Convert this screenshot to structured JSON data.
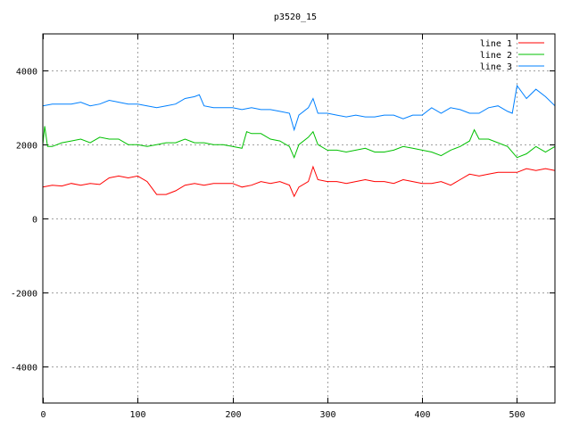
{
  "chart_data": {
    "type": "line",
    "title": "p3520_15",
    "xlabel": "",
    "ylabel": "",
    "xlim": [
      0,
      540
    ],
    "ylim": [
      -5000,
      5000
    ],
    "xticks": [
      0,
      100,
      200,
      300,
      400,
      500
    ],
    "yticks": [
      -4000,
      -2000,
      0,
      2000,
      4000
    ],
    "grid": true,
    "legend_position": "top-right",
    "series": [
      {
        "name": "line 1",
        "color": "#ff0000",
        "x": [
          0,
          10,
          20,
          30,
          40,
          50,
          60,
          70,
          80,
          90,
          100,
          110,
          120,
          130,
          140,
          150,
          160,
          170,
          180,
          190,
          200,
          210,
          220,
          230,
          240,
          250,
          260,
          265,
          270,
          280,
          285,
          290,
          300,
          310,
          320,
          330,
          340,
          350,
          360,
          370,
          380,
          390,
          400,
          410,
          420,
          430,
          440,
          450,
          460,
          470,
          480,
          490,
          500,
          510,
          520,
          530,
          540
        ],
        "y": [
          850,
          900,
          880,
          950,
          900,
          950,
          920,
          1100,
          1150,
          1100,
          1150,
          1000,
          650,
          650,
          750,
          900,
          950,
          900,
          950,
          950,
          950,
          850,
          900,
          1000,
          950,
          1000,
          900,
          600,
          850,
          1000,
          1400,
          1050,
          1000,
          1000,
          950,
          1000,
          1050,
          1000,
          1000,
          950,
          1050,
          1000,
          950,
          950,
          1000,
          900,
          1050,
          1200,
          1150,
          1200,
          1250,
          1250,
          1250,
          1350,
          1300,
          1350,
          1300
        ]
      },
      {
        "name": "line 2",
        "color": "#00c000",
        "x": [
          0,
          2,
          5,
          10,
          20,
          30,
          40,
          50,
          60,
          70,
          80,
          90,
          100,
          110,
          120,
          130,
          140,
          150,
          160,
          170,
          180,
          190,
          200,
          210,
          215,
          220,
          230,
          240,
          250,
          260,
          265,
          270,
          280,
          285,
          290,
          300,
          310,
          320,
          330,
          340,
          350,
          360,
          370,
          380,
          390,
          400,
          410,
          420,
          430,
          440,
          450,
          455,
          460,
          470,
          480,
          490,
          500,
          510,
          520,
          530,
          540
        ],
        "y": [
          2000,
          2500,
          1950,
          1950,
          2050,
          2100,
          2150,
          2050,
          2200,
          2150,
          2150,
          2000,
          2000,
          1950,
          2000,
          2050,
          2050,
          2150,
          2050,
          2050,
          2000,
          2000,
          1950,
          1900,
          2350,
          2300,
          2300,
          2150,
          2100,
          1950,
          1650,
          2000,
          2200,
          2350,
          2000,
          1850,
          1850,
          1800,
          1850,
          1900,
          1800,
          1800,
          1850,
          1950,
          1900,
          1850,
          1800,
          1700,
          1850,
          1950,
          2100,
          2400,
          2150,
          2150,
          2050,
          1950,
          1650,
          1750,
          1950,
          1800,
          1950
        ]
      },
      {
        "name": "line 3",
        "color": "#0080ff",
        "x": [
          0,
          10,
          20,
          30,
          40,
          50,
          60,
          70,
          80,
          90,
          100,
          110,
          120,
          130,
          140,
          150,
          160,
          165,
          170,
          180,
          190,
          200,
          210,
          220,
          230,
          240,
          250,
          260,
          265,
          270,
          280,
          285,
          290,
          300,
          310,
          320,
          330,
          340,
          350,
          360,
          370,
          380,
          390,
          400,
          410,
          420,
          430,
          440,
          450,
          460,
          470,
          480,
          490,
          495,
          500,
          510,
          520,
          530,
          540
        ],
        "y": [
          3050,
          3100,
          3100,
          3100,
          3150,
          3050,
          3100,
          3200,
          3150,
          3100,
          3100,
          3050,
          3000,
          3050,
          3100,
          3250,
          3300,
          3350,
          3050,
          3000,
          3000,
          3000,
          2950,
          3000,
          2950,
          2950,
          2900,
          2850,
          2400,
          2800,
          3000,
          3250,
          2850,
          2850,
          2800,
          2750,
          2800,
          2750,
          2750,
          2800,
          2800,
          2700,
          2800,
          2800,
          3000,
          2850,
          3000,
          2950,
          2850,
          2850,
          3000,
          3050,
          2900,
          2850,
          3600,
          3250,
          3500,
          3300,
          3050
        ]
      }
    ]
  }
}
